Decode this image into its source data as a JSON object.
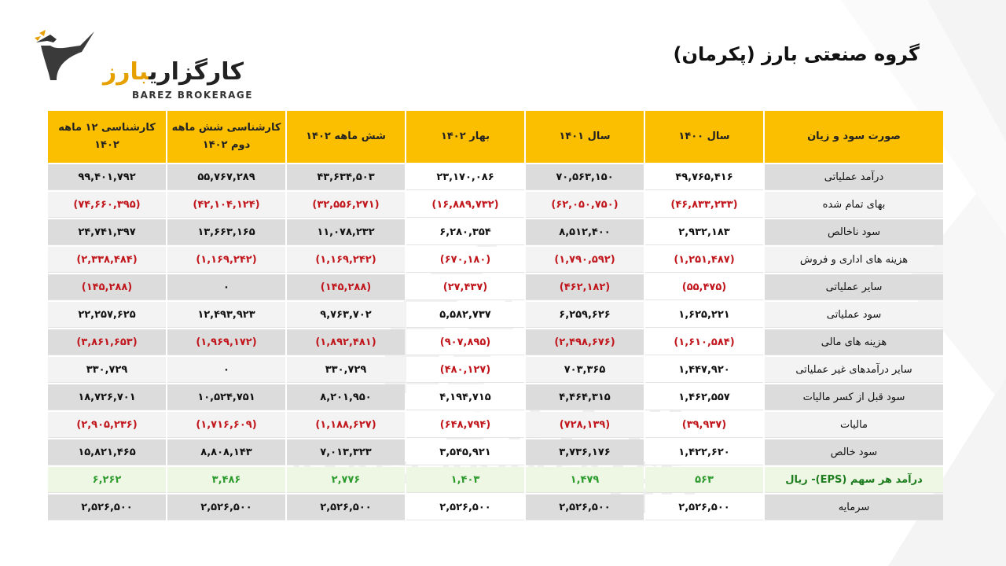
{
  "brand": {
    "name_fa_main": "کارگزاری",
    "name_fa_accent": "بارز",
    "name_en": "BAREZ BROKERAGE"
  },
  "watermark": {
    "text_fa": "کارگزاری بارز",
    "text_en": "BAREZ BROKERAGE"
  },
  "page": {
    "title": "گروه صنعتی بارز (پکرمان)"
  },
  "colors": {
    "header_bg": "#fbbf00",
    "negative": "#c0161c",
    "eps": "#2e9b2e",
    "accent": "#e6a100"
  },
  "table": {
    "headers": {
      "label": "صورت سود و زیان",
      "y1400": "سال ۱۴۰۰",
      "y1401": "سال ۱۴۰۱",
      "spring1402": "بهار ۱۴۰۲",
      "six1402": "شش ماهه ۱۴۰۲",
      "exp6": "کارشناسی شش ماهه دوم ۱۴۰۲",
      "exp12": "کارشناسی ۱۲ ماهه ۱۴۰۲"
    },
    "rows": [
      {
        "label": "درآمد عملیاتی",
        "v": [
          "۴۹,۷۶۵,۴۱۶",
          "۷۰,۵۶۳,۱۵۰",
          "۲۳,۱۷۰,۰۸۶",
          "۴۳,۶۳۴,۵۰۳",
          "۵۵,۷۶۷,۲۸۹",
          "۹۹,۴۰۱,۷۹۲"
        ]
      },
      {
        "label": "بهای تمام شده",
        "v": [
          "(۴۶,۸۳۳,۲۳۳)",
          "(۶۲,۰۵۰,۷۵۰)",
          "(۱۶,۸۸۹,۷۳۲)",
          "(۳۲,۵۵۶,۲۷۱)",
          "(۴۲,۱۰۴,۱۲۴)",
          "(۷۴,۶۶۰,۳۹۵)"
        ]
      },
      {
        "label": "سود ناخالص",
        "v": [
          "۲,۹۳۲,۱۸۳",
          "۸,۵۱۲,۴۰۰",
          "۶,۲۸۰,۳۵۴",
          "۱۱,۰۷۸,۲۳۲",
          "۱۳,۶۶۳,۱۶۵",
          "۲۴,۷۴۱,۳۹۷"
        ]
      },
      {
        "label": "هزینه های اداری و فروش",
        "v": [
          "(۱,۲۵۱,۴۸۷)",
          "(۱,۷۹۰,۵۹۲)",
          "(۶۷۰,۱۸۰)",
          "(۱,۱۶۹,۲۴۲)",
          "(۱,۱۶۹,۲۴۲)",
          "(۲,۳۳۸,۴۸۴)"
        ]
      },
      {
        "label": "سایر عملیاتی",
        "v": [
          "(۵۵,۴۷۵)",
          "(۴۶۲,۱۸۲)",
          "(۲۷,۴۳۷)",
          "(۱۴۵,۲۸۸)",
          "۰",
          "(۱۴۵,۲۸۸)"
        ]
      },
      {
        "label": "سود عملیاتی",
        "v": [
          "۱,۶۲۵,۲۲۱",
          "۶,۲۵۹,۶۲۶",
          "۵,۵۸۲,۷۳۷",
          "۹,۷۶۳,۷۰۲",
          "۱۲,۴۹۳,۹۲۳",
          "۲۲,۲۵۷,۶۲۵"
        ]
      },
      {
        "label": "هزینه های مالی",
        "v": [
          "(۱,۶۱۰,۵۸۴)",
          "(۲,۴۹۸,۶۷۶)",
          "(۹۰۷,۸۹۵)",
          "(۱,۸۹۲,۴۸۱)",
          "(۱,۹۶۹,۱۷۲)",
          "(۳,۸۶۱,۶۵۳)"
        ]
      },
      {
        "label": "سایر درآمدهای غیر عملیاتی",
        "v": [
          "۱,۴۴۷,۹۲۰",
          "۷۰۳,۳۶۵",
          "(۴۸۰,۱۲۷)",
          "۳۳۰,۷۲۹",
          "۰",
          "۳۳۰,۷۲۹"
        ]
      },
      {
        "label": "سود قبل از کسر مالیات",
        "v": [
          "۱,۴۶۲,۵۵۷",
          "۴,۴۶۴,۳۱۵",
          "۴,۱۹۴,۷۱۵",
          "۸,۲۰۱,۹۵۰",
          "۱۰,۵۲۴,۷۵۱",
          "۱۸,۷۲۶,۷۰۱"
        ]
      },
      {
        "label": "مالیات",
        "v": [
          "(۳۹,۹۳۷)",
          "(۷۲۸,۱۳۹)",
          "(۶۴۸,۷۹۴)",
          "(۱,۱۸۸,۶۲۷)",
          "(۱,۷۱۶,۶۰۹)",
          "(۲,۹۰۵,۲۳۶)"
        ]
      },
      {
        "label": "سود خالص",
        "v": [
          "۱,۴۲۲,۶۲۰",
          "۳,۷۳۶,۱۷۶",
          "۳,۵۴۵,۹۲۱",
          "۷,۰۱۳,۳۲۳",
          "۸,۸۰۸,۱۴۳",
          "۱۵,۸۲۱,۴۶۵"
        ]
      },
      {
        "label": "درآمد هر سهم (EPS)- ریال",
        "v": [
          "۵۶۳",
          "۱,۴۷۹",
          "۱,۴۰۳",
          "۲,۷۷۶",
          "۳,۴۸۶",
          "۶,۲۶۲"
        ]
      },
      {
        "label": "سرمایه",
        "v": [
          "۲,۵۲۶,۵۰۰",
          "۲,۵۲۶,۵۰۰",
          "۲,۵۲۶,۵۰۰",
          "۲,۵۲۶,۵۰۰",
          "۲,۵۲۶,۵۰۰",
          "۲,۵۲۶,۵۰۰"
        ]
      }
    ]
  }
}
